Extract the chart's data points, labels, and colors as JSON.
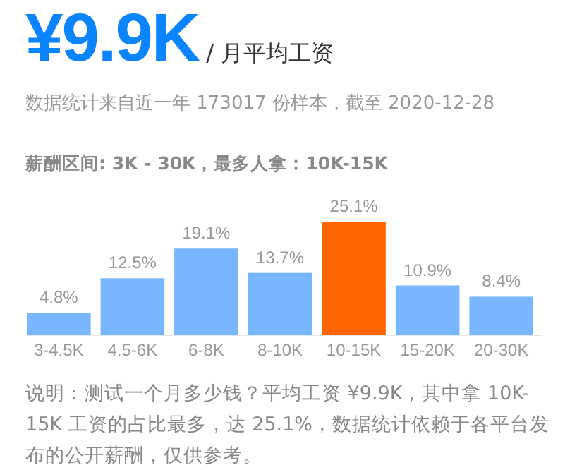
{
  "chart_data": {
    "type": "bar",
    "title": "¥9.9K",
    "subtitle": "/ 月平均工资",
    "annotations": [
      "数据统计来自近一年 173017 份样本，截至 2020-12-28",
      "薪酬区间: 3K - 30K，最多人拿：10K-15K",
      "说明：测试一个月多少钱？平均工资 ¥9.9K，其中拿 10K-15K 工资的占比最多，达 25.1%，数据统计依赖于各平台发布的公开薪酬，仅供参考。"
    ],
    "categories": [
      "3-4.5K",
      "4.5-6K",
      "6-8K",
      "8-10K",
      "10-15K",
      "15-20K",
      "20-30K"
    ],
    "values": [
      4.8,
      12.5,
      19.1,
      13.7,
      25.1,
      10.9,
      8.4
    ],
    "value_labels": [
      "4.8%",
      "12.5%",
      "19.1%",
      "13.7%",
      "25.1%",
      "10.9%",
      "8.4%"
    ],
    "colors": [
      "#78b6ff",
      "#78b6ff",
      "#78b6ff",
      "#78b6ff",
      "#ff6600",
      "#78b6ff",
      "#78b6ff"
    ]
  }
}
